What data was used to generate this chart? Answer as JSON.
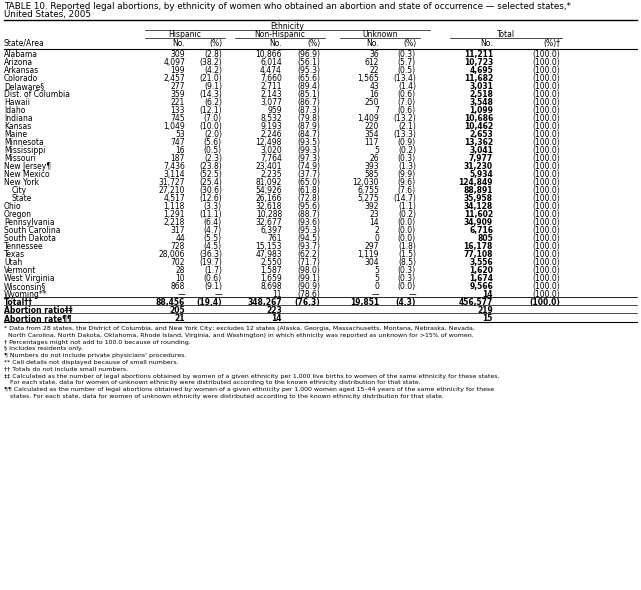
{
  "title_line1": "TABLE 10. Reported legal abortions, by ethnicity of women who obtained an abortion and state of occurrence — selected states,*",
  "title_line2": "United States, 2005",
  "rows": [
    [
      "Alabama",
      "309",
      "(2.8)",
      "10,866",
      "(96.9)",
      "36",
      "(0.3)",
      "11,211",
      "(100.0)",
      false
    ],
    [
      "Arizona",
      "4,097",
      "(38.2)",
      "6,014",
      "(56.1)",
      "612",
      "(5.7)",
      "10,723",
      "(100.0)",
      false
    ],
    [
      "Arkansas",
      "199",
      "(4.2)",
      "4,474",
      "(95.3)",
      "22",
      "(0.5)",
      "4,695",
      "(100.0)",
      false
    ],
    [
      "Colorado",
      "2,457",
      "(21.0)",
      "7,660",
      "(65.6)",
      "1,565",
      "(13.4)",
      "11,682",
      "(100.0)",
      false
    ],
    [
      "Delaware§",
      "277",
      "(9.1)",
      "2,711",
      "(89.4)",
      "43",
      "(1.4)",
      "3,031",
      "(100.0)",
      false
    ],
    [
      "Dist. of Columbia",
      "359",
      "(14.3)",
      "2,143",
      "(85.1)",
      "16",
      "(0.6)",
      "2,518",
      "(100.0)",
      false
    ],
    [
      "Hawaii",
      "221",
      "(6.2)",
      "3,077",
      "(86.7)",
      "250",
      "(7.0)",
      "3,548",
      "(100.0)",
      false
    ],
    [
      "Idaho",
      "133",
      "(12.1)",
      "959",
      "(87.3)",
      "7",
      "(0.6)",
      "1,099",
      "(100.0)",
      false
    ],
    [
      "Indiana",
      "745",
      "(7.0)",
      "8,532",
      "(79.8)",
      "1,409",
      "(13.2)",
      "10,686",
      "(100.0)",
      false
    ],
    [
      "Kansas",
      "1,049",
      "(10.0)",
      "9,193",
      "(87.9)",
      "220",
      "(2.1)",
      "10,462",
      "(100.0)",
      false
    ],
    [
      "Maine",
      "53",
      "(2.0)",
      "2,246",
      "(84.7)",
      "354",
      "(13.3)",
      "2,653",
      "(100.0)",
      false
    ],
    [
      "Minnesota",
      "747",
      "(5.6)",
      "12,498",
      "(93.5)",
      "117",
      "(0.9)",
      "13,362",
      "(100.0)",
      false
    ],
    [
      "Mississippi",
      "16",
      "(0.5)",
      "3,020",
      "(99.3)",
      "5",
      "(0.2)",
      "3,041",
      "(100.0)",
      false
    ],
    [
      "Missouri",
      "187",
      "(2.3)",
      "7,764",
      "(97.3)",
      "26",
      "(0.3)",
      "7,977",
      "(100.0)",
      false
    ],
    [
      "New Jersey¶",
      "7,436",
      "(23.8)",
      "23,401",
      "(74.9)",
      "393",
      "(1.3)",
      "31,230",
      "(100.0)",
      false
    ],
    [
      "New Mexico",
      "3,114",
      "(52.5)",
      "2,235",
      "(37.7)",
      "585",
      "(9.9)",
      "5,934",
      "(100.0)",
      false
    ],
    [
      "New York",
      "31,727",
      "(25.4)",
      "81,092",
      "(65.0)",
      "12,030",
      "(9.6)",
      "124,849",
      "(100.0)",
      false
    ],
    [
      " City",
      "27,210",
      "(30.6)",
      "54,926",
      "(61.8)",
      "6,755",
      "(7.6)",
      "88,891",
      "(100.0)",
      false
    ],
    [
      " State",
      "4,517",
      "(12.6)",
      "26,166",
      "(72.8)",
      "5,275",
      "(14.7)",
      "35,958",
      "(100.0)",
      false
    ],
    [
      "Ohio",
      "1,118",
      "(3.3)",
      "32,618",
      "(95.6)",
      "392",
      "(1.1)",
      "34,128",
      "(100.0)",
      false
    ],
    [
      "Oregon",
      "1,291",
      "(11.1)",
      "10,288",
      "(88.7)",
      "23",
      "(0.2)",
      "11,602",
      "(100.0)",
      false
    ],
    [
      "Pennsylvania",
      "2,218",
      "(6.4)",
      "32,677",
      "(93.6)",
      "14",
      "(0.0)",
      "34,909",
      "(100.0)",
      false
    ],
    [
      "South Carolina",
      "317",
      "(4.7)",
      "6,397",
      "(95.3)",
      "2",
      "(0.0)",
      "6,716",
      "(100.0)",
      false
    ],
    [
      "South Dakota",
      "44",
      "(5.5)",
      "761",
      "(94.5)",
      "0",
      "(0.0)",
      "805",
      "(100.0)",
      false
    ],
    [
      "Tennessee",
      "728",
      "(4.5)",
      "15,153",
      "(93.7)",
      "297",
      "(1.8)",
      "16,178",
      "(100.0)",
      false
    ],
    [
      "Texas",
      "28,006",
      "(36.3)",
      "47,983",
      "(62.2)",
      "1,119",
      "(1.5)",
      "77,108",
      "(100.0)",
      false
    ],
    [
      "Utah",
      "702",
      "(19.7)",
      "2,550",
      "(71.7)",
      "304",
      "(8.5)",
      "3,556",
      "(100.0)",
      false
    ],
    [
      "Vermont",
      "28",
      "(1.7)",
      "1,587",
      "(98.0)",
      "5",
      "(0.3)",
      "1,620",
      "(100.0)",
      false
    ],
    [
      "West Virginia",
      "10",
      "(0.6)",
      "1,659",
      "(99.1)",
      "5",
      "(0.3)",
      "1,674",
      "(100.0)",
      false
    ],
    [
      "Wisconsin§",
      "868",
      "(9.1)",
      "8,698",
      "(90.9)",
      "0",
      "(0.0)",
      "9,566",
      "(100.0)",
      false
    ],
    [
      "Wyoming**",
      "—",
      "—",
      "11",
      "(78.6)",
      "—",
      "—",
      "14",
      "(100.0)",
      false
    ],
    [
      "Total††",
      "88,456",
      "(19.4)",
      "348,267",
      "(76.3)",
      "19,851",
      "(4.3)",
      "456,577",
      "(100.0)",
      true
    ],
    [
      "Abortion ratio‡‡",
      "205",
      "",
      "223",
      "",
      "",
      "",
      "219",
      "",
      true
    ],
    [
      "Abortion rate¶¶",
      "21",
      "",
      "14",
      "",
      "",
      "",
      "15",
      "",
      true
    ]
  ],
  "footnotes": [
    "* Data from 28 states, the District of Columbia, and New York City; excludes 12 states (Alaska, Georgia, Massachusetts, Montana, Nebraska, Nevada,",
    "  North Carolina, North Dakota, Oklahoma, Rhode Island, Virginia, and Washington) in which ethnicity was reported as unknown for >15% of women.",
    "† Percentages might not add to 100.0 because of rounding.",
    "§ Includes residents only.",
    "¶ Numbers do not include private physicians' procedures.",
    "** Cell details not displayed because of small numbers.",
    "†† Totals do not include small numbers.",
    "‡‡ Calculated as the number of legal abortions obtained by women of a given ethnicity per 1,000 live births to women of the same ethnicity for these states.",
    "   For each state, data for women of unknown ethnicity were distributed according to the known ethnicity distribution for that state.",
    "¶¶ Calculated as the number of legal abortions obtained by women of a given ethnicity per 1,000 women aged 15–44 years of the same ethnicity for these",
    "   states. For each state, data for women of unknown ethnicity were distributed according to the known ethnicity distribution for that state."
  ],
  "bg_color": "#ffffff",
  "text_color": "#000000"
}
